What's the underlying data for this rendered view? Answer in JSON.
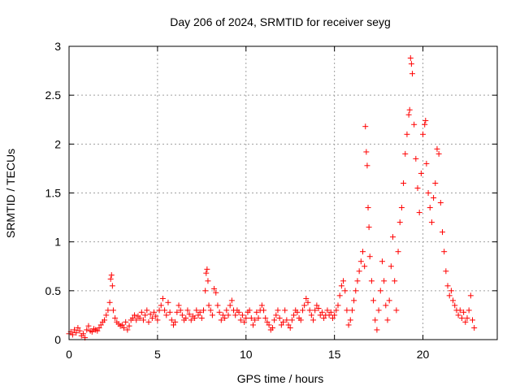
{
  "chart_data": {
    "type": "scatter",
    "title": "Day 206 of 2024, SRMTID for receiver seyg",
    "xlabel": "GPS time / hours",
    "ylabel": "SRMTID / TECUs",
    "xlim": [
      0,
      24.2
    ],
    "ylim": [
      0,
      3
    ],
    "grid": true,
    "marker": "+",
    "color": "#ff0000",
    "x_ticks": [
      0,
      5,
      10,
      15,
      20
    ],
    "x_tick_labels": [
      "0",
      "5",
      "10",
      "15",
      "20"
    ],
    "y_ticks": [
      0,
      0.5,
      1,
      1.5,
      2,
      2.5,
      3
    ],
    "y_tick_labels": [
      "0",
      "0.5",
      "1",
      "1.5",
      "2",
      "2.5",
      "3"
    ],
    "series": [
      {
        "name": "SRMTID",
        "points": [
          [
            0.0,
            0.06
          ],
          [
            0.1,
            0.08
          ],
          [
            0.2,
            0.05
          ],
          [
            0.3,
            0.1
          ],
          [
            0.4,
            0.07
          ],
          [
            0.5,
            0.12
          ],
          [
            0.6,
            0.09
          ],
          [
            0.7,
            0.04
          ],
          [
            0.8,
            0.06
          ],
          [
            0.9,
            0.02
          ],
          [
            1.0,
            0.1
          ],
          [
            1.1,
            0.14
          ],
          [
            1.2,
            0.09
          ],
          [
            1.3,
            0.08
          ],
          [
            1.4,
            0.11
          ],
          [
            1.5,
            0.1
          ],
          [
            1.6,
            0.09
          ],
          [
            1.7,
            0.12
          ],
          [
            1.8,
            0.15
          ],
          [
            1.9,
            0.18
          ],
          [
            2.0,
            0.2
          ],
          [
            2.1,
            0.25
          ],
          [
            2.2,
            0.3
          ],
          [
            2.3,
            0.38
          ],
          [
            2.35,
            0.62
          ],
          [
            2.4,
            0.66
          ],
          [
            2.45,
            0.55
          ],
          [
            2.5,
            0.3
          ],
          [
            2.6,
            0.22
          ],
          [
            2.7,
            0.18
          ],
          [
            2.8,
            0.16
          ],
          [
            2.9,
            0.14
          ],
          [
            3.0,
            0.15
          ],
          [
            3.1,
            0.12
          ],
          [
            3.2,
            0.18
          ],
          [
            3.3,
            0.1
          ],
          [
            3.4,
            0.14
          ],
          [
            3.5,
            0.2
          ],
          [
            3.6,
            0.22
          ],
          [
            3.7,
            0.25
          ],
          [
            3.8,
            0.2
          ],
          [
            3.9,
            0.24
          ],
          [
            4.0,
            0.22
          ],
          [
            4.1,
            0.28
          ],
          [
            4.2,
            0.2
          ],
          [
            4.3,
            0.25
          ],
          [
            4.4,
            0.3
          ],
          [
            4.5,
            0.18
          ],
          [
            4.6,
            0.26
          ],
          [
            4.7,
            0.22
          ],
          [
            4.8,
            0.28
          ],
          [
            4.9,
            0.24
          ],
          [
            5.0,
            0.2
          ],
          [
            5.1,
            0.3
          ],
          [
            5.2,
            0.35
          ],
          [
            5.3,
            0.42
          ],
          [
            5.4,
            0.3
          ],
          [
            5.5,
            0.25
          ],
          [
            5.6,
            0.38
          ],
          [
            5.7,
            0.28
          ],
          [
            5.8,
            0.2
          ],
          [
            5.9,
            0.15
          ],
          [
            6.0,
            0.18
          ],
          [
            6.1,
            0.28
          ],
          [
            6.2,
            0.35
          ],
          [
            6.3,
            0.3
          ],
          [
            6.4,
            0.25
          ],
          [
            6.5,
            0.2
          ],
          [
            6.6,
            0.22
          ],
          [
            6.7,
            0.3
          ],
          [
            6.8,
            0.26
          ],
          [
            6.9,
            0.2
          ],
          [
            7.0,
            0.24
          ],
          [
            7.1,
            0.22
          ],
          [
            7.2,
            0.3
          ],
          [
            7.3,
            0.25
          ],
          [
            7.4,
            0.28
          ],
          [
            7.5,
            0.22
          ],
          [
            7.6,
            0.3
          ],
          [
            7.7,
            0.5
          ],
          [
            7.75,
            0.68
          ],
          [
            7.8,
            0.72
          ],
          [
            7.85,
            0.6
          ],
          [
            7.9,
            0.35
          ],
          [
            8.0,
            0.3
          ],
          [
            8.1,
            0.25
          ],
          [
            8.2,
            0.52
          ],
          [
            8.3,
            0.48
          ],
          [
            8.4,
            0.35
          ],
          [
            8.5,
            0.28
          ],
          [
            8.6,
            0.2
          ],
          [
            8.7,
            0.25
          ],
          [
            8.8,
            0.22
          ],
          [
            8.9,
            0.3
          ],
          [
            9.0,
            0.25
          ],
          [
            9.1,
            0.35
          ],
          [
            9.2,
            0.4
          ],
          [
            9.3,
            0.3
          ],
          [
            9.4,
            0.25
          ],
          [
            9.5,
            0.3
          ],
          [
            9.6,
            0.28
          ],
          [
            9.7,
            0.2
          ],
          [
            9.8,
            0.25
          ],
          [
            9.9,
            0.18
          ],
          [
            10.0,
            0.22
          ],
          [
            10.1,
            0.28
          ],
          [
            10.2,
            0.3
          ],
          [
            10.3,
            0.22
          ],
          [
            10.4,
            0.15
          ],
          [
            10.5,
            0.2
          ],
          [
            10.6,
            0.28
          ],
          [
            10.7,
            0.22
          ],
          [
            10.8,
            0.3
          ],
          [
            10.9,
            0.35
          ],
          [
            11.0,
            0.3
          ],
          [
            11.1,
            0.22
          ],
          [
            11.2,
            0.18
          ],
          [
            11.3,
            0.15
          ],
          [
            11.4,
            0.1
          ],
          [
            11.5,
            0.12
          ],
          [
            11.6,
            0.2
          ],
          [
            11.7,
            0.25
          ],
          [
            11.8,
            0.3
          ],
          [
            11.9,
            0.22
          ],
          [
            12.0,
            0.15
          ],
          [
            12.1,
            0.18
          ],
          [
            12.2,
            0.3
          ],
          [
            12.3,
            0.2
          ],
          [
            12.4,
            0.15
          ],
          [
            12.5,
            0.12
          ],
          [
            12.6,
            0.2
          ],
          [
            12.7,
            0.25
          ],
          [
            12.8,
            0.3
          ],
          [
            12.9,
            0.28
          ],
          [
            13.0,
            0.22
          ],
          [
            13.1,
            0.2
          ],
          [
            13.2,
            0.3
          ],
          [
            13.3,
            0.35
          ],
          [
            13.4,
            0.42
          ],
          [
            13.5,
            0.38
          ],
          [
            13.6,
            0.3
          ],
          [
            13.7,
            0.25
          ],
          [
            13.8,
            0.2
          ],
          [
            13.9,
            0.3
          ],
          [
            14.0,
            0.35
          ],
          [
            14.1,
            0.32
          ],
          [
            14.2,
            0.25
          ],
          [
            14.3,
            0.28
          ],
          [
            14.4,
            0.22
          ],
          [
            14.5,
            0.25
          ],
          [
            14.6,
            0.3
          ],
          [
            14.7,
            0.25
          ],
          [
            14.8,
            0.28
          ],
          [
            14.9,
            0.22
          ],
          [
            15.0,
            0.25
          ],
          [
            15.1,
            0.3
          ],
          [
            15.2,
            0.35
          ],
          [
            15.3,
            0.45
          ],
          [
            15.4,
            0.55
          ],
          [
            15.5,
            0.6
          ],
          [
            15.6,
            0.5
          ],
          [
            15.7,
            0.3
          ],
          [
            15.8,
            0.15
          ],
          [
            15.9,
            0.2
          ],
          [
            16.0,
            0.3
          ],
          [
            16.1,
            0.4
          ],
          [
            16.2,
            0.5
          ],
          [
            16.3,
            0.6
          ],
          [
            16.4,
            0.7
          ],
          [
            16.5,
            0.8
          ],
          [
            16.6,
            0.9
          ],
          [
            16.7,
            0.75
          ],
          [
            16.75,
            2.18
          ],
          [
            16.8,
            1.92
          ],
          [
            16.85,
            1.78
          ],
          [
            16.9,
            1.35
          ],
          [
            16.95,
            1.15
          ],
          [
            17.0,
            0.85
          ],
          [
            17.1,
            0.6
          ],
          [
            17.2,
            0.4
          ],
          [
            17.3,
            0.2
          ],
          [
            17.4,
            0.1
          ],
          [
            17.5,
            0.3
          ],
          [
            17.6,
            0.5
          ],
          [
            17.7,
            0.8
          ],
          [
            17.8,
            0.6
          ],
          [
            17.9,
            0.35
          ],
          [
            18.0,
            0.2
          ],
          [
            18.1,
            0.4
          ],
          [
            18.2,
            0.75
          ],
          [
            18.3,
            1.05
          ],
          [
            18.4,
            0.6
          ],
          [
            18.5,
            0.3
          ],
          [
            18.6,
            0.9
          ],
          [
            18.7,
            1.2
          ],
          [
            18.8,
            1.35
          ],
          [
            18.9,
            1.6
          ],
          [
            19.0,
            1.9
          ],
          [
            19.1,
            2.1
          ],
          [
            19.2,
            2.3
          ],
          [
            19.25,
            2.35
          ],
          [
            19.3,
            2.88
          ],
          [
            19.35,
            2.82
          ],
          [
            19.4,
            2.72
          ],
          [
            19.5,
            2.2
          ],
          [
            19.6,
            1.85
          ],
          [
            19.7,
            1.55
          ],
          [
            19.8,
            1.3
          ],
          [
            19.9,
            1.7
          ],
          [
            20.0,
            2.1
          ],
          [
            20.1,
            2.2
          ],
          [
            20.15,
            2.24
          ],
          [
            20.2,
            1.8
          ],
          [
            20.3,
            1.5
          ],
          [
            20.4,
            1.35
          ],
          [
            20.5,
            1.2
          ],
          [
            20.6,
            1.45
          ],
          [
            20.7,
            1.6
          ],
          [
            20.8,
            1.95
          ],
          [
            20.9,
            1.9
          ],
          [
            21.0,
            1.4
          ],
          [
            21.1,
            1.1
          ],
          [
            21.2,
            0.9
          ],
          [
            21.3,
            0.7
          ],
          [
            21.4,
            0.55
          ],
          [
            21.5,
            0.45
          ],
          [
            21.6,
            0.5
          ],
          [
            21.7,
            0.4
          ],
          [
            21.8,
            0.35
          ],
          [
            21.9,
            0.3
          ],
          [
            22.0,
            0.25
          ],
          [
            22.1,
            0.3
          ],
          [
            22.2,
            0.22
          ],
          [
            22.3,
            0.28
          ],
          [
            22.4,
            0.18
          ],
          [
            22.5,
            0.22
          ],
          [
            22.6,
            0.3
          ],
          [
            22.7,
            0.45
          ],
          [
            22.8,
            0.2
          ],
          [
            22.9,
            0.12
          ]
        ]
      }
    ]
  }
}
